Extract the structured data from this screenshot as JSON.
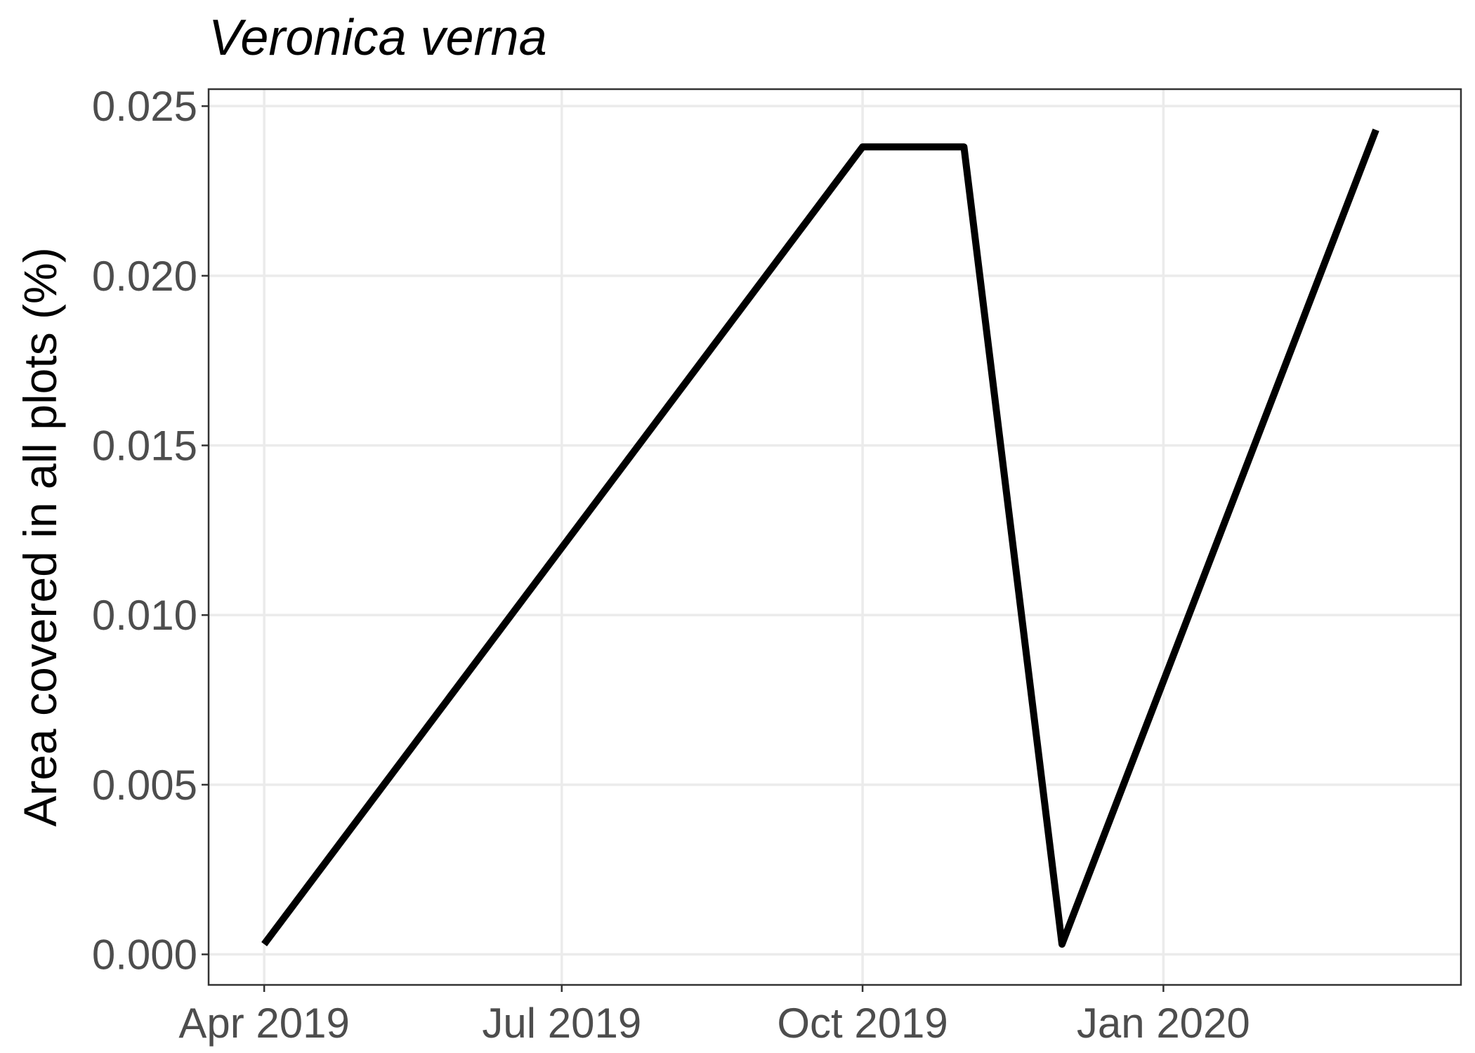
{
  "chart_data": {
    "type": "line",
    "title": "Veronica verna",
    "xlabel": "",
    "ylabel": "Area covered in all plots (%)",
    "x_tick_labels": [
      "Apr 2019",
      "Jul 2019",
      "Oct 2019",
      "Jan 2020"
    ],
    "x_ticks": [
      "2019-04-01",
      "2019-07-01",
      "2019-10-01",
      "2020-01-01"
    ],
    "xlim": [
      "2019-03-15",
      "2020-04-01"
    ],
    "y_tick_labels": [
      "0.000",
      "0.005",
      "0.010",
      "0.015",
      "0.020",
      "0.025"
    ],
    "y_ticks": [
      0,
      0.005,
      0.01,
      0.015,
      0.02,
      0.025
    ],
    "ylim": [
      -0.0009,
      0.0255
    ],
    "grid": true,
    "legend": "none",
    "series": [
      {
        "color": "#000000",
        "points": [
          {
            "x": "2019-04-01",
            "y": 0.0003
          },
          {
            "x": "2019-10-01",
            "y": 0.0238
          },
          {
            "x": "2019-11-01",
            "y": 0.0238
          },
          {
            "x": "2019-12-01",
            "y": 0.0003
          },
          {
            "x": "2020-03-06",
            "y": 0.0243
          }
        ]
      }
    ]
  }
}
